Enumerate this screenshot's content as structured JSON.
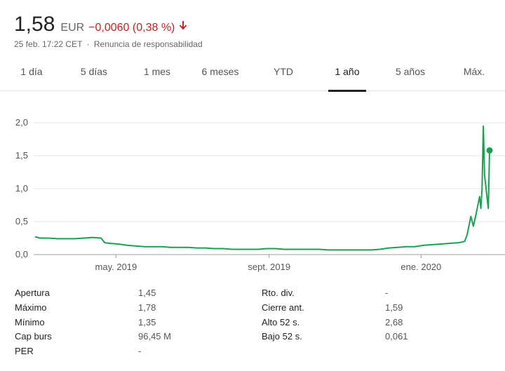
{
  "quote": {
    "price": "1,58",
    "currency": "EUR",
    "change": "−0,0060 (0,38 %)",
    "arrow_icon": "arrow-down-icon",
    "timestamp": "25 feb. 17:22 CET",
    "separator": "·",
    "disclaimer": "Renuncia de responsabilidad"
  },
  "tabs": [
    {
      "label": "1 día",
      "active": false
    },
    {
      "label": "5 días",
      "active": false
    },
    {
      "label": "1 mes",
      "active": false
    },
    {
      "label": "6 meses",
      "active": false
    },
    {
      "label": "YTD",
      "active": false
    },
    {
      "label": "1 año",
      "active": true
    },
    {
      "label": "5 años",
      "active": false
    },
    {
      "label": "Máx.",
      "active": false
    }
  ],
  "colors": {
    "line": "#1e9e50",
    "negative": "#c5221f",
    "gridline": "#e6e6e6"
  },
  "chart_data": {
    "type": "line",
    "ylim": [
      0,
      2.0
    ],
    "y_ticks": [
      "0,0",
      "0,5",
      "1,0",
      "1,5",
      "2,0"
    ],
    "x_ticks": [
      "may. 2019",
      "sept. 2019",
      "ene. 2020"
    ],
    "x_tick_dates": [
      "2019-05-01",
      "2019-09-01",
      "2020-01-01"
    ],
    "grid": true,
    "last_point_marker": true,
    "series": [
      {
        "x": [
          "2019-02-25",
          "2019-03-01",
          "2019-03-08",
          "2019-03-15",
          "2019-03-22",
          "2019-03-29",
          "2019-04-05",
          "2019-04-12",
          "2019-04-19",
          "2019-04-22",
          "2019-04-26",
          "2019-05-03",
          "2019-05-10",
          "2019-05-17",
          "2019-05-24",
          "2019-05-31",
          "2019-06-07",
          "2019-06-14",
          "2019-06-21",
          "2019-06-28",
          "2019-07-05",
          "2019-07-12",
          "2019-07-19",
          "2019-07-26",
          "2019-08-02",
          "2019-08-09",
          "2019-08-16",
          "2019-08-23",
          "2019-08-30",
          "2019-09-06",
          "2019-09-13",
          "2019-09-20",
          "2019-09-27",
          "2019-10-04",
          "2019-10-11",
          "2019-10-18",
          "2019-10-25",
          "2019-11-01",
          "2019-11-08",
          "2019-11-15",
          "2019-11-22",
          "2019-11-29",
          "2019-12-06",
          "2019-12-13",
          "2019-12-20",
          "2019-12-27",
          "2020-01-03",
          "2020-01-10",
          "2020-01-17",
          "2020-01-24",
          "2020-01-31",
          "2020-02-03",
          "2020-02-05",
          "2020-02-07",
          "2020-02-10",
          "2020-02-12",
          "2020-02-14",
          "2020-02-17",
          "2020-02-18",
          "2020-02-19",
          "2020-02-20",
          "2020-02-21",
          "2020-02-24",
          "2020-02-25"
        ],
        "values": [
          0.27,
          0.25,
          0.25,
          0.24,
          0.24,
          0.24,
          0.25,
          0.26,
          0.25,
          0.18,
          0.17,
          0.16,
          0.14,
          0.13,
          0.12,
          0.12,
          0.12,
          0.11,
          0.11,
          0.11,
          0.1,
          0.1,
          0.09,
          0.09,
          0.08,
          0.08,
          0.08,
          0.08,
          0.09,
          0.09,
          0.08,
          0.08,
          0.08,
          0.08,
          0.08,
          0.07,
          0.07,
          0.07,
          0.07,
          0.07,
          0.07,
          0.08,
          0.1,
          0.11,
          0.12,
          0.12,
          0.14,
          0.15,
          0.16,
          0.17,
          0.18,
          0.19,
          0.2,
          0.3,
          0.58,
          0.43,
          0.6,
          0.88,
          0.7,
          1.0,
          1.95,
          1.2,
          0.7,
          1.58
        ]
      }
    ]
  },
  "stats": {
    "left": [
      {
        "label": "Apertura",
        "value": "1,45"
      },
      {
        "label": "Máximo",
        "value": "1,78"
      },
      {
        "label": "Mínimo",
        "value": "1,35"
      },
      {
        "label": "Cap burs",
        "value": "96,45 M"
      },
      {
        "label": "PER",
        "value": "-"
      }
    ],
    "right": [
      {
        "label": "Rto. div.",
        "value": "-"
      },
      {
        "label": "Cierre ant.",
        "value": "1,59"
      },
      {
        "label": "Alto 52 s.",
        "value": "2,68"
      },
      {
        "label": "Bajo 52 s.",
        "value": "0,061"
      }
    ]
  }
}
